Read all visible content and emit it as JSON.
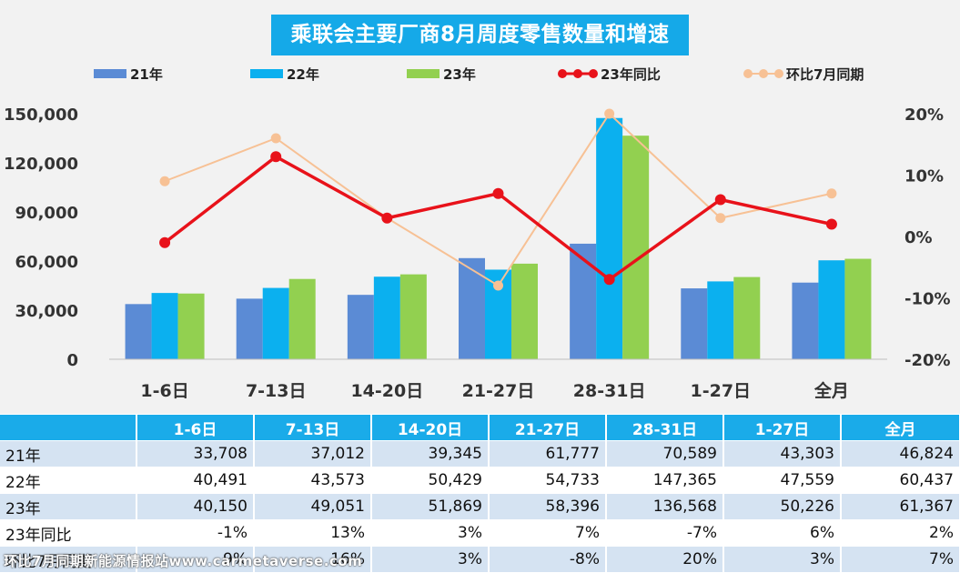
{
  "chart_data": {
    "type": "bar",
    "title": "乘联会主要厂商8月周度零售数量和增速",
    "categories": [
      "1-6日",
      "7-13日",
      "14-20日",
      "21-27日",
      "28-31日",
      "1-27日",
      "全月"
    ],
    "series": [
      {
        "name": "21年",
        "kind": "bar",
        "axis": "left",
        "color": "#5b8bd5",
        "values": [
          33708,
          37012,
          39345,
          61777,
          70589,
          43303,
          46824
        ]
      },
      {
        "name": "22年",
        "kind": "bar",
        "axis": "left",
        "color": "#0bb0ef",
        "values": [
          40491,
          43573,
          50429,
          54733,
          147365,
          47559,
          60437
        ]
      },
      {
        "name": "23年",
        "kind": "bar",
        "axis": "left",
        "color": "#92d050",
        "values": [
          40150,
          49051,
          51869,
          58396,
          136568,
          50226,
          61367
        ]
      },
      {
        "name": "23年同比",
        "kind": "line",
        "axis": "right",
        "color": "#e8121a",
        "values": [
          -1,
          13,
          3,
          7,
          -7,
          6,
          2
        ]
      },
      {
        "name": "环比7月同期",
        "kind": "line",
        "axis": "right",
        "color": "#f7c195",
        "values": [
          9,
          16,
          3,
          -8,
          20,
          3,
          7
        ]
      }
    ],
    "y_left": {
      "min": 0,
      "max": 150000,
      "ticks": [
        "0",
        "30,000",
        "60,000",
        "90,000",
        "120,000",
        "150,000"
      ]
    },
    "y_right": {
      "min": -20,
      "max": 20,
      "ticks": [
        "-20%",
        "-10%",
        "0%",
        "10%",
        "20%"
      ]
    },
    "legend_position": "top",
    "grid": false
  },
  "table": {
    "headers": [
      "1-6日",
      "7-13日",
      "14-20日",
      "21-27日",
      "28-31日",
      "1-27日",
      "全月"
    ],
    "rows": [
      {
        "label": "21年",
        "cells": [
          "33,708",
          "37,012",
          "39,345",
          "61,777",
          "70,589",
          "43,303",
          "46,824"
        ]
      },
      {
        "label": "22年",
        "cells": [
          "40,491",
          "43,573",
          "50,429",
          "54,733",
          "147,365",
          "47,559",
          "60,437"
        ]
      },
      {
        "label": "23年",
        "cells": [
          "40,150",
          "49,051",
          "51,869",
          "58,396",
          "136,568",
          "50,226",
          "61,367"
        ]
      },
      {
        "label": "23年同比",
        "cells": [
          "-1%",
          "13%",
          "3%",
          "7%",
          "-7%",
          "6%",
          "2%"
        ]
      },
      {
        "label": "环比7月同期",
        "cells": [
          "9%",
          "16%",
          "3%",
          "-8%",
          "20%",
          "3%",
          "7%"
        ]
      }
    ]
  },
  "watermark": "环比7月同期新能源情报站www.carmetaverse.com"
}
